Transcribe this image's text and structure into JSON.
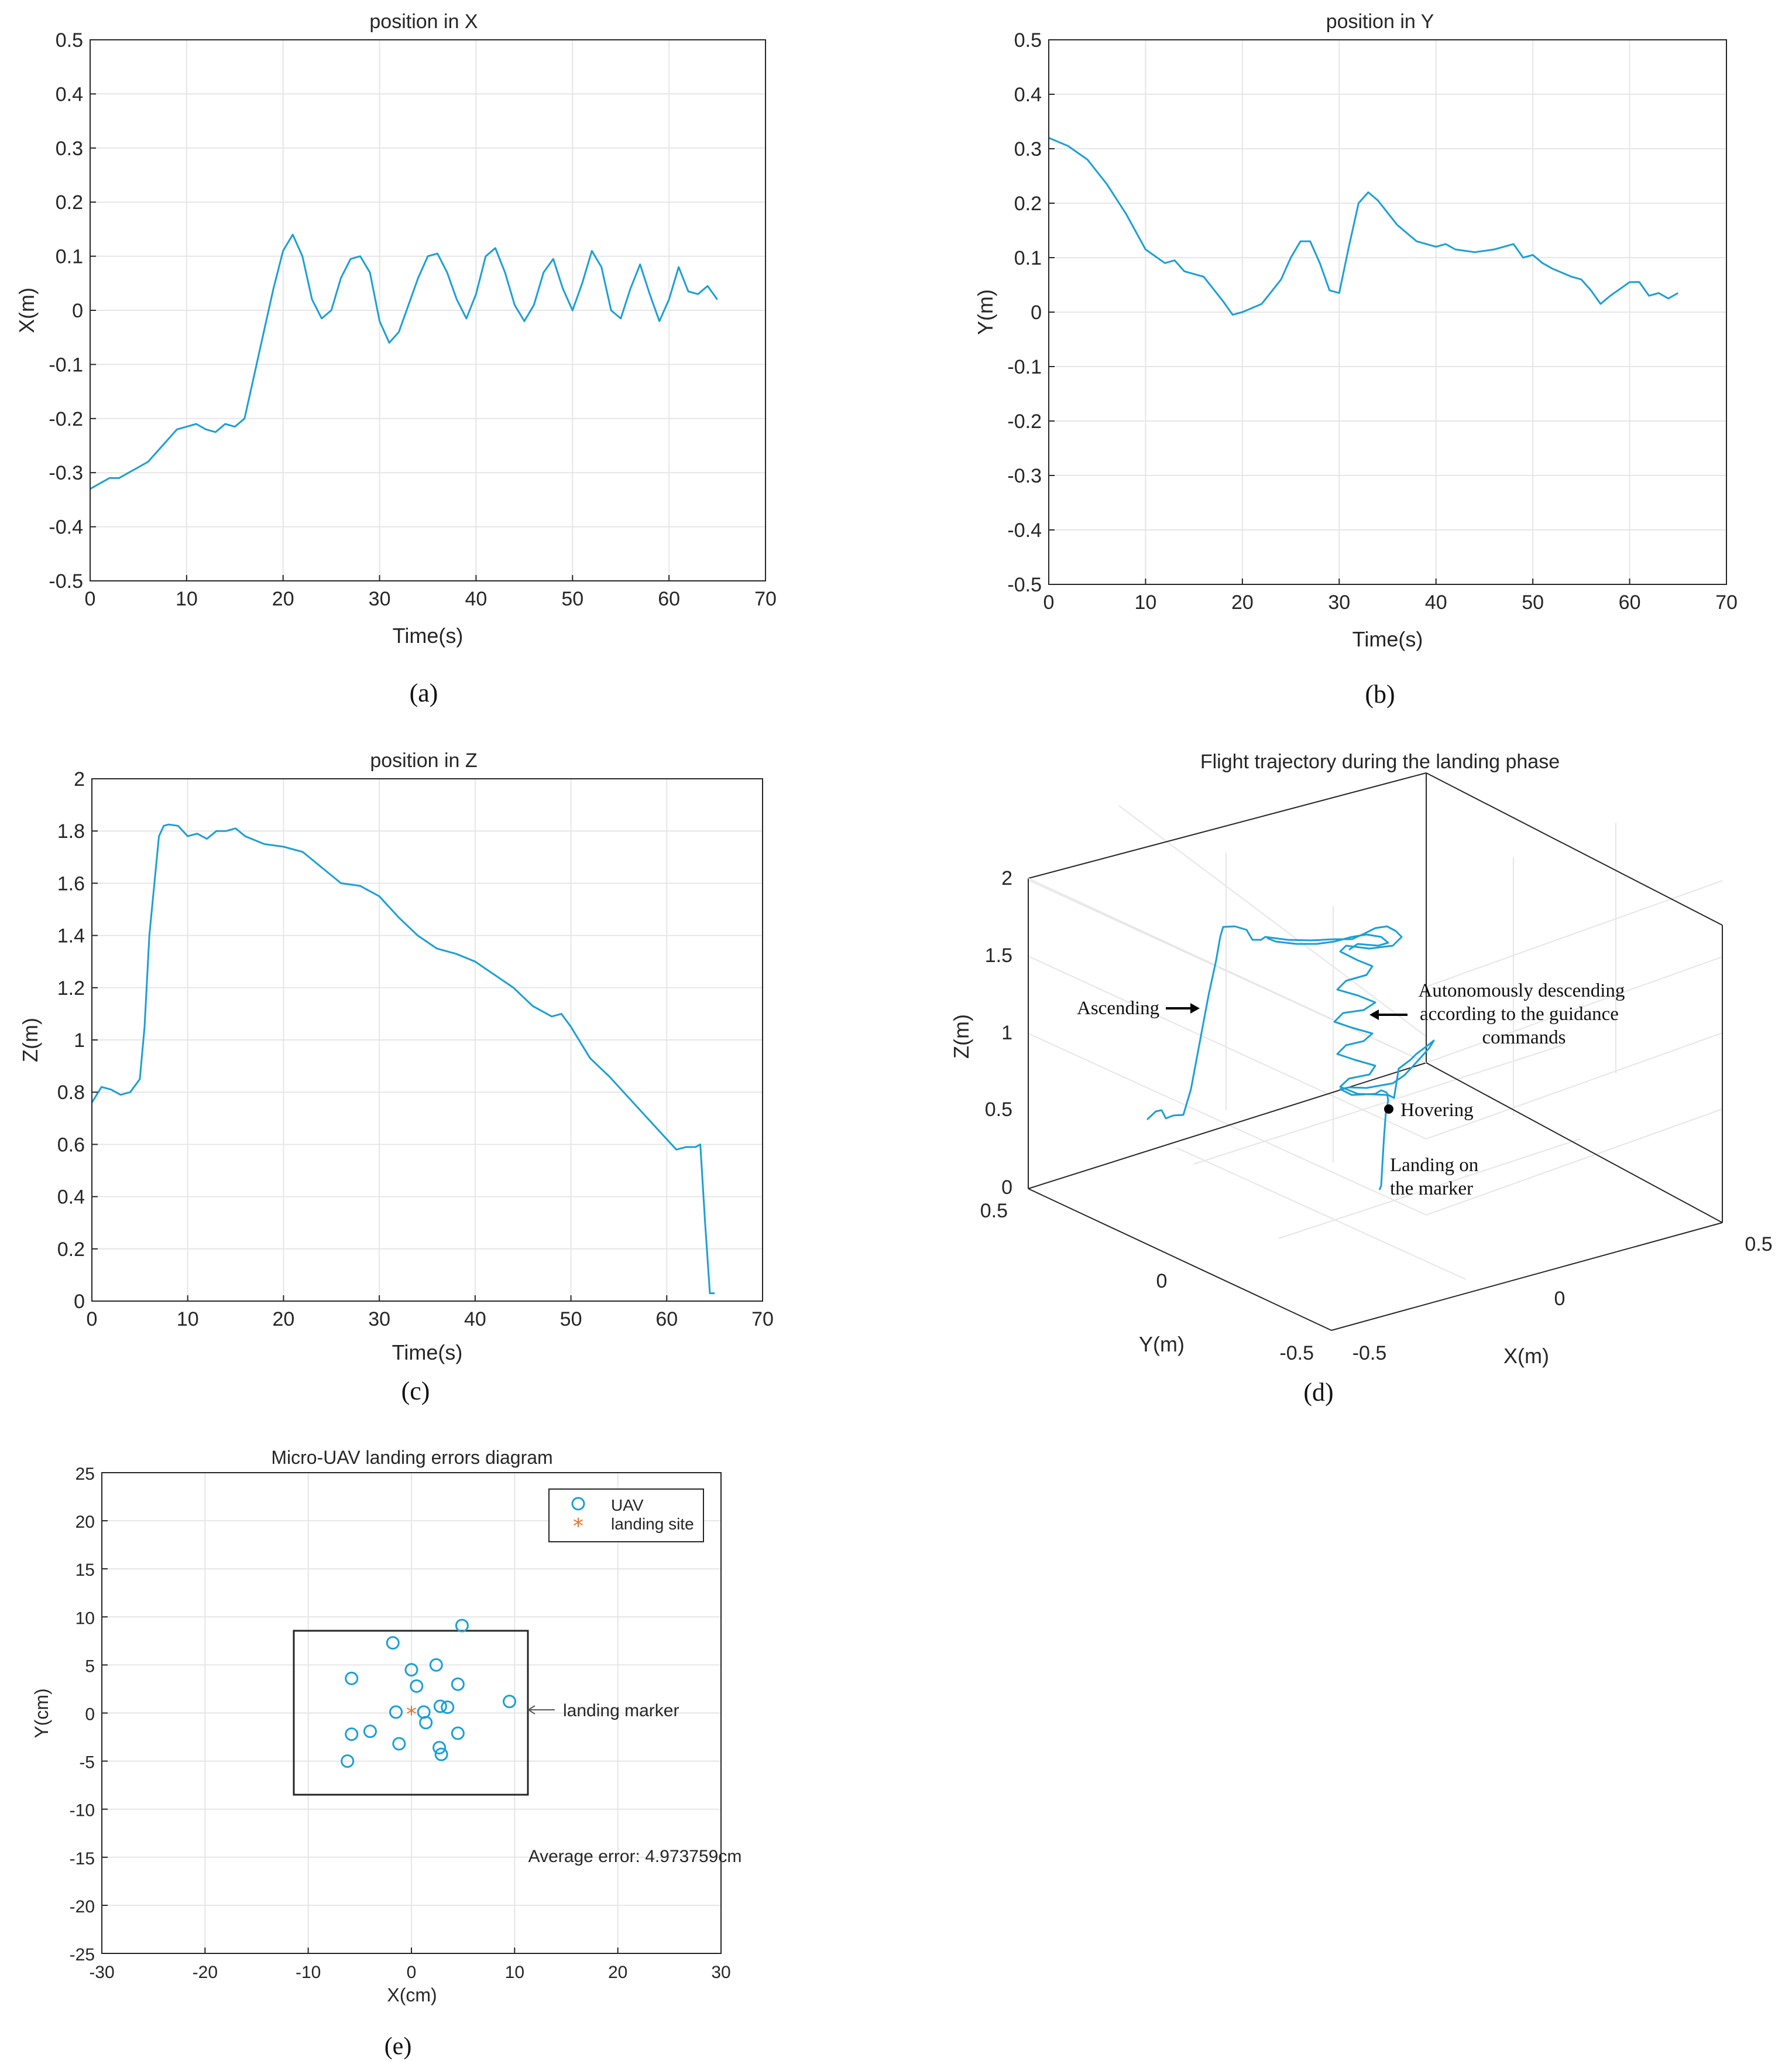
{
  "chart_data": [
    {
      "id": "a",
      "type": "line",
      "panel_label": "(a)",
      "title": "position in X",
      "xlabel": "Time(s)",
      "ylabel": "X(m)",
      "xlim": [
        0,
        70
      ],
      "ylim": [
        -0.5,
        0.5
      ],
      "xticks": [
        0,
        10,
        20,
        30,
        40,
        50,
        60,
        70
      ],
      "yticks": [
        -0.5,
        -0.4,
        -0.3,
        -0.2,
        -0.1,
        0,
        0.1,
        0.2,
        0.3,
        0.4,
        0.5
      ],
      "ytick_labels": [
        "-0.5",
        "-0.4",
        "-0.3",
        "-0.2",
        "-0.1",
        "0",
        "0.1",
        "0.2",
        "0.3",
        "0.4",
        "0.5"
      ],
      "series": [
        {
          "name": "X",
          "color": "#1a9fd6",
          "x": [
            0,
            1,
            2,
            3,
            4,
            5,
            6,
            7,
            8,
            9,
            10,
            11,
            12,
            13,
            14,
            15,
            16,
            17,
            18,
            19,
            20,
            21,
            22,
            23,
            24,
            25,
            26,
            27,
            28,
            29,
            30,
            31,
            32,
            33,
            34,
            35,
            36,
            37,
            38,
            39,
            40,
            41,
            42,
            43,
            44,
            45,
            46,
            47,
            48,
            49,
            50,
            51,
            52,
            53,
            54,
            55,
            56,
            57,
            58,
            59,
            60,
            61,
            62,
            63,
            64,
            65
          ],
          "y": [
            -0.33,
            -0.32,
            -0.31,
            -0.31,
            -0.3,
            -0.29,
            -0.28,
            -0.26,
            -0.24,
            -0.22,
            -0.215,
            -0.21,
            -0.22,
            -0.225,
            -0.21,
            -0.215,
            -0.2,
            -0.12,
            -0.04,
            0.04,
            0.11,
            0.14,
            0.1,
            0.02,
            -0.015,
            0.0,
            0.06,
            0.095,
            0.1,
            0.07,
            -0.02,
            -0.06,
            -0.04,
            0.01,
            0.06,
            0.1,
            0.105,
            0.07,
            0.02,
            -0.015,
            0.03,
            0.1,
            0.115,
            0.07,
            0.01,
            -0.02,
            0.01,
            0.07,
            0.095,
            0.04,
            0.0,
            0.05,
            0.11,
            0.08,
            0.0,
            -0.015,
            0.04,
            0.085,
            0.03,
            -0.02,
            0.02,
            0.08,
            0.035,
            0.03,
            0.045,
            0.02
          ]
        }
      ]
    },
    {
      "id": "b",
      "type": "line",
      "panel_label": "(b)",
      "title": "position in Y",
      "xlabel": "Time(s)",
      "ylabel": "Y(m)",
      "xlim": [
        0,
        70
      ],
      "ylim": [
        -0.5,
        0.5
      ],
      "xticks": [
        0,
        10,
        20,
        30,
        40,
        50,
        60,
        70
      ],
      "yticks": [
        -0.5,
        -0.4,
        -0.3,
        -0.2,
        -0.1,
        0,
        0.1,
        0.2,
        0.3,
        0.4,
        0.5
      ],
      "ytick_labels": [
        "-0.5",
        "-0.4",
        "-0.3",
        "-0.2",
        "-0.1",
        "0",
        "0.1",
        "0.2",
        "0.3",
        "0.4",
        "0.5"
      ],
      "series": [
        {
          "name": "Y",
          "color": "#1a9fd6",
          "x": [
            0,
            2,
            4,
            6,
            8,
            10,
            12,
            13,
            14,
            16,
            18,
            19,
            20,
            22,
            24,
            25,
            26,
            27,
            28,
            29,
            30,
            31,
            32,
            33,
            34,
            36,
            38,
            40,
            41,
            42,
            44,
            46,
            47,
            48,
            49,
            50,
            51,
            52,
            54,
            55,
            56,
            57,
            58,
            60,
            61,
            62,
            63,
            64,
            65
          ],
          "y": [
            0.32,
            0.305,
            0.28,
            0.235,
            0.18,
            0.115,
            0.09,
            0.095,
            0.075,
            0.065,
            0.02,
            -0.005,
            0.0,
            0.015,
            0.06,
            0.1,
            0.13,
            0.13,
            0.09,
            0.04,
            0.035,
            0.12,
            0.2,
            0.22,
            0.205,
            0.16,
            0.13,
            0.12,
            0.125,
            0.115,
            0.11,
            0.115,
            0.12,
            0.125,
            0.1,
            0.105,
            0.09,
            0.08,
            0.065,
            0.06,
            0.04,
            0.015,
            0.03,
            0.055,
            0.055,
            0.03,
            0.035,
            0.025,
            0.035
          ]
        }
      ]
    },
    {
      "id": "c",
      "type": "line",
      "panel_label": "(c)",
      "title": "position in Z",
      "xlabel": "Time(s)",
      "ylabel": "Z(m)",
      "xlim": [
        0,
        70
      ],
      "ylim": [
        0,
        2
      ],
      "xticks": [
        0,
        10,
        20,
        30,
        40,
        50,
        60,
        70
      ],
      "yticks": [
        0,
        0.2,
        0.4,
        0.6,
        0.8,
        1,
        1.2,
        1.4,
        1.6,
        1.8,
        2
      ],
      "ytick_labels": [
        "0",
        "0.2",
        "0.4",
        "0.6",
        "0.8",
        "1",
        "1.2",
        "1.4",
        "1.6",
        "1.8",
        "2"
      ],
      "series": [
        {
          "name": "Z",
          "color": "#1a9fd6",
          "x": [
            0,
            1,
            2,
            3,
            4,
            5,
            5.5,
            6,
            7,
            7.5,
            8,
            9,
            10,
            11,
            12,
            13,
            14,
            15,
            16,
            18,
            20,
            22,
            24,
            26,
            28,
            30,
            32,
            34,
            36,
            38,
            40,
            42,
            44,
            46,
            48,
            49,
            50,
            52,
            54,
            56,
            58,
            60,
            61,
            62,
            63,
            63.5,
            64,
            64.5,
            65
          ],
          "y": [
            0.76,
            0.82,
            0.81,
            0.79,
            0.8,
            0.85,
            1.05,
            1.4,
            1.78,
            1.82,
            1.825,
            1.82,
            1.78,
            1.79,
            1.77,
            1.8,
            1.8,
            1.81,
            1.78,
            1.75,
            1.74,
            1.72,
            1.66,
            1.6,
            1.59,
            1.55,
            1.47,
            1.4,
            1.35,
            1.33,
            1.3,
            1.25,
            1.2,
            1.13,
            1.09,
            1.1,
            1.05,
            0.93,
            0.86,
            0.78,
            0.7,
            0.62,
            0.58,
            0.59,
            0.59,
            0.6,
            0.3,
            0.03,
            0.03
          ]
        }
      ]
    },
    {
      "id": "d",
      "type": "line",
      "panel_label": "(d)",
      "title": "Flight trajectory during the landing phase",
      "xlabel": "X(m)",
      "ylabel": "Y(m)",
      "zlabel": "Z(m)",
      "z_ticks": [
        "0",
        "0.5",
        "1",
        "1.5",
        "2"
      ],
      "y_ticks": [
        "0.5",
        "0",
        "-0.5"
      ],
      "x_ticks": [
        "-0.5",
        "0",
        "0.5"
      ],
      "annotations": [
        "Ascending",
        "Autonomously descending",
        "according to the guidance",
        "commands",
        "Hovering",
        "Landing on",
        "the marker"
      ]
    },
    {
      "id": "e",
      "type": "scatter",
      "panel_label": "(e)",
      "title": "Micro-UAV landing errors diagram",
      "xlabel": "X(cm)",
      "ylabel": "Y(cm)",
      "xlim": [
        -30,
        30
      ],
      "ylim": [
        -25,
        25
      ],
      "xticks": [
        -30,
        -20,
        -10,
        0,
        10,
        20,
        30
      ],
      "yticks": [
        -25,
        -20,
        -15,
        -10,
        -5,
        0,
        5,
        10,
        15,
        20,
        25
      ],
      "ytick_labels": [
        "-25",
        "-20",
        "-15",
        "-10",
        "-5",
        "0",
        "5",
        "10",
        "15",
        "20",
        "25"
      ],
      "legend": [
        "UAV",
        "landing site"
      ],
      "uav_points": [
        [
          4.9,
          9.1
        ],
        [
          -1.8,
          7.3
        ],
        [
          2.4,
          5.0
        ],
        [
          0,
          4.5
        ],
        [
          -5.8,
          3.6
        ],
        [
          4.5,
          3.0
        ],
        [
          0.5,
          2.8
        ],
        [
          9.5,
          1.2
        ],
        [
          2.8,
          0.7
        ],
        [
          3.5,
          0.6
        ],
        [
          -1.5,
          0.1
        ],
        [
          1.2,
          0.1
        ],
        [
          1.4,
          -1.0
        ],
        [
          -4.0,
          -1.9
        ],
        [
          -5.8,
          -2.2
        ],
        [
          4.5,
          -2.1
        ],
        [
          -1.2,
          -3.2
        ],
        [
          2.7,
          -3.6
        ],
        [
          2.9,
          -4.3
        ],
        [
          -6.2,
          -5.0
        ]
      ],
      "landing_site": [
        0,
        0
      ],
      "marker_box": {
        "x": [
          -11.5,
          11.3
        ],
        "y": [
          -8.6,
          8.7
        ]
      },
      "marker_label": "landing marker",
      "avg_error_label": "Average error: 4.973759cm"
    }
  ]
}
